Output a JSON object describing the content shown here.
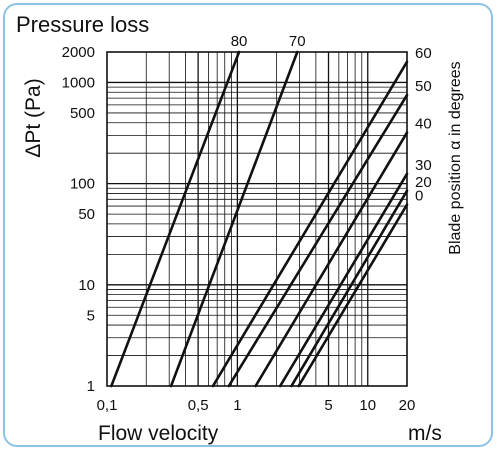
{
  "chart_data": {
    "type": "line",
    "title": "Pressure loss",
    "ylabel_prefix": "Δ",
    "ylabel": "Pt (Pa)",
    "xlabel": "Flow velocity",
    "xunit": "m/s",
    "right_label": "Blade position α in degrees",
    "x_scale": "log",
    "y_scale": "log",
    "xlim": [
      0.1,
      20
    ],
    "ylim": [
      1,
      2000
    ],
    "grid": true,
    "x_ticks": [
      {
        "value": 0.1,
        "label": "0,1"
      },
      {
        "value": 0.5,
        "label": "0,5"
      },
      {
        "value": 1,
        "label": "1"
      },
      {
        "value": 5,
        "label": "5"
      },
      {
        "value": 10,
        "label": "10"
      },
      {
        "value": 20,
        "label": "20"
      }
    ],
    "y_ticks": [
      {
        "value": 1,
        "label": "1"
      },
      {
        "value": 5,
        "label": "5"
      },
      {
        "value": 10,
        "label": "10"
      },
      {
        "value": 50,
        "label": "50"
      },
      {
        "value": 100,
        "label": "100"
      },
      {
        "value": 500,
        "label": "500"
      },
      {
        "value": 1000,
        "label": "1000"
      },
      {
        "value": 2000,
        "label": "2000"
      }
    ],
    "series": [
      {
        "name": "80",
        "x": [
          0.108,
          1.03
        ],
        "y": [
          1,
          2000
        ]
      },
      {
        "name": "70",
        "x": [
          0.31,
          2.88
        ],
        "y": [
          1,
          2000
        ]
      },
      {
        "name": "60",
        "x": [
          0.65,
          20
        ],
        "y": [
          1,
          1600
        ]
      },
      {
        "name": "50",
        "x": [
          0.86,
          20
        ],
        "y": [
          1,
          750
        ]
      },
      {
        "name": "40",
        "x": [
          1.38,
          20
        ],
        "y": [
          1,
          320
        ]
      },
      {
        "name": "30",
        "x": [
          2.13,
          20
        ],
        "y": [
          1,
          125
        ]
      },
      {
        "name": "20",
        "x": [
          2.6,
          20
        ],
        "y": [
          1,
          85
        ]
      },
      {
        "name": "0",
        "x": [
          2.95,
          20
        ],
        "y": [
          1,
          62
        ]
      }
    ]
  }
}
